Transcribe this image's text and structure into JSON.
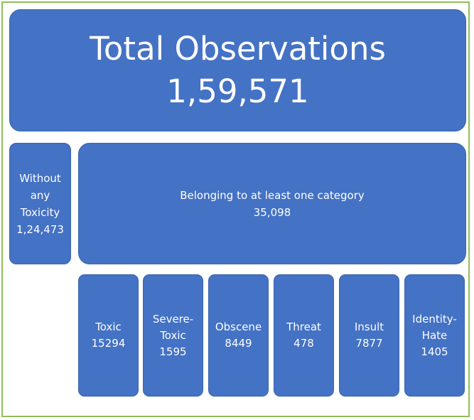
{
  "total": {
    "title": "Total Observations",
    "value": "1,59,571"
  },
  "without": {
    "label": "Without any Toxicity",
    "value": "1,24,473"
  },
  "belonging": {
    "label": "Belonging to at least one category",
    "value": "35,098"
  },
  "categories": [
    {
      "label": "Toxic",
      "value": "15294"
    },
    {
      "label": "Severe-Toxic",
      "value": "1595"
    },
    {
      "label": "Obscene",
      "value": "8449"
    },
    {
      "label": "Threat",
      "value": "478"
    },
    {
      "label": "Insult",
      "value": "7877"
    },
    {
      "label": "Identity-Hate",
      "value": "1405"
    }
  ],
  "colors": {
    "box_fill": "#4472c4",
    "frame_border": "#8fbf5a",
    "text": "#ffffff"
  }
}
